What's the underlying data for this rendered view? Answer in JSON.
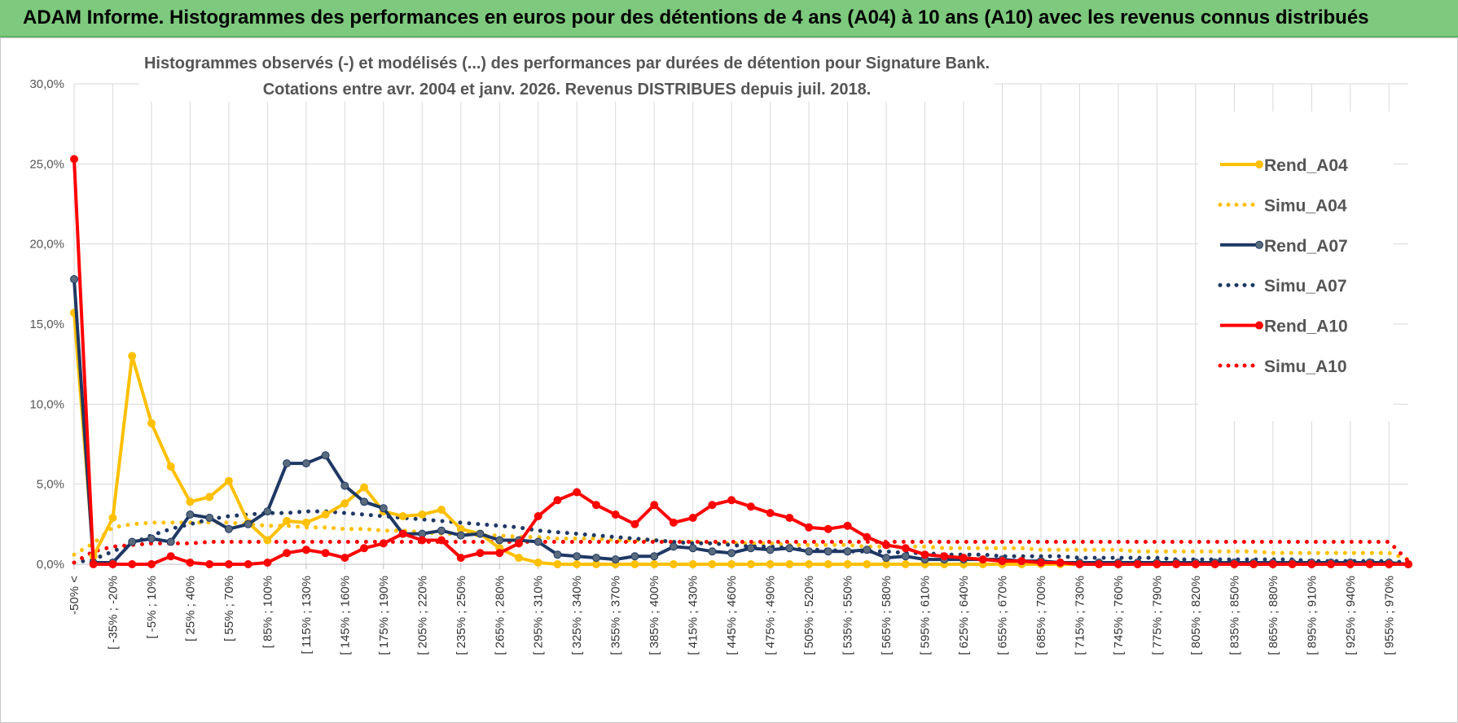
{
  "banner": {
    "title": "ADAM Informe. Histogrammes des performances en euros pour des détentions de 4 ans (A04) à 10 ans (A10) avec les revenus connus distribués"
  },
  "colors": {
    "banner_bg": "#7dc97d",
    "A04": "#ffc000",
    "A07": "#1f3864",
    "A10": "#ff0000",
    "grid": "#d9d9d9"
  },
  "chart_data": {
    "type": "line",
    "title": "Histogrammes observés (-) et modélisés (...) des performances par durées de détention pour Signature Bank.",
    "subtitle": "Cotations entre avr. 2004 et janv. 2026. Revenus DISTRIBUES depuis juil. 2018.",
    "xlabel": "",
    "ylabel": "",
    "ylim": [
      0,
      0.3
    ],
    "y_ticks": [
      "0,0%",
      "5,0%",
      "10,0%",
      "15,0%",
      "20,0%",
      "25,0%",
      "30,0%"
    ],
    "grid": true,
    "legend_position": "right",
    "categories": [
      "-50% <",
      "[ -50% ; -35%",
      "[ -35% ; -20%",
      "[ -20% ; -5%",
      "[ -5% ; 10%",
      "[ 10% ; 25%",
      "[ 25% ; 40%",
      "[ 40% ; 55%",
      "[ 55% ; 70%",
      "[ 70% ; 85%",
      "[ 85% ; 100%",
      "[ 100% ; 115%",
      "[ 115% ; 130%",
      "[ 130% ; 145%",
      "[ 145% ; 160%",
      "[ 160% ; 175%",
      "[ 175% ; 190%",
      "[ 190% ; 205%",
      "[ 205% ; 220%",
      "[ 220% ; 235%",
      "[ 235% ; 250%",
      "[ 250% ; 265%",
      "[ 265% ; 280%",
      "[ 280% ; 295%",
      "[ 295% ; 310%",
      "[ 310% ; 325%",
      "[ 325% ; 340%",
      "[ 340% ; 355%",
      "[ 355% ; 370%",
      "[ 370% ; 385%",
      "[ 385% ; 400%",
      "[ 400% ; 415%",
      "[ 415% ; 430%",
      "[ 430% ; 445%",
      "[ 445% ; 460%",
      "[ 460% ; 475%",
      "[ 475% ; 490%",
      "[ 490% ; 505%",
      "[ 505% ; 520%",
      "[ 520% ; 535%",
      "[ 535% ; 550%",
      "[ 550% ; 565%",
      "[ 565% ; 580%",
      "[ 580% ; 595%",
      "[ 595% ; 610%",
      "[ 610% ; 625%",
      "[ 625% ; 640%",
      "[ 640% ; 655%",
      "[ 655% ; 670%",
      "[ 670% ; 685%",
      "[ 685% ; 700%",
      "[ 700% ; 715%",
      "[ 715% ; 730%",
      "[ 730% ; 745%",
      "[ 745% ; 760%",
      "[ 760% ; 775%",
      "[ 775% ; 790%",
      "[ 790% ; 805%",
      "[ 805% ; 820%",
      "[ 820% ; 835%",
      "[ 835% ; 850%",
      "[ 850% ; 865%",
      "[ 865% ; 880%",
      "[ 880% ; 895%",
      "[ 895% ; 910%",
      "[ 910% ; 925%",
      "[ 925% ; 940%",
      "[ 940% ; 955%",
      "[ 955% ; 970%",
      "[ 970% ; 985%"
    ],
    "shown_tick_labels": [
      "-50% <",
      "[ -35% ; -20%",
      "[ -5% ; 10%",
      "[ 25% ; 40%",
      "[ 55% ; 70%",
      "[ 85% ; 100%",
      "[ 115% ; 130%",
      "[ 145% ; 160%",
      "[ 175% ; 190%",
      "[ 205% ; 220%",
      "[ 235% ; 250%",
      "[ 265% ; 280%",
      "[ 295% ; 310%",
      "[ 325% ; 340%",
      "[ 355% ; 370%",
      "[ 385% ; 400%",
      "[ 415% ; 430%",
      "[ 445% ; 460%",
      "[ 475% ; 490%",
      "[ 505% ; 520%",
      "[ 535% ; 550%",
      "[ 565% ; 580%",
      "[ 595% ; 610%",
      "[ 625% ; 640%",
      "[ 655% ; 670%",
      "[ 685% ; 700%",
      "[ 715% ; 730%",
      "[ 745% ; 760%",
      "[ 775% ; 790%",
      "[ 805% ; 820%",
      "[ 835% ; 850%",
      "[ 865% ; 880%",
      "[ 895% ; 910%",
      "[ 925% ; 940%",
      "[ 955% ; 970%"
    ],
    "series": [
      {
        "name": "Rend_A04",
        "style": "solid",
        "color": "#ffc000",
        "values": [
          0.157,
          0.005,
          0.029,
          0.13,
          0.088,
          0.061,
          0.039,
          0.042,
          0.052,
          0.026,
          0.015,
          0.027,
          0.026,
          0.031,
          0.038,
          0.048,
          0.033,
          0.03,
          0.031,
          0.034,
          0.022,
          0.019,
          0.01,
          0.004,
          0.001,
          0,
          0,
          0,
          0,
          0,
          0,
          0,
          0,
          0,
          0,
          0,
          0,
          0,
          0,
          0,
          0,
          0,
          0,
          0,
          0,
          0,
          0,
          0,
          0,
          0,
          0,
          0,
          0,
          0,
          0,
          0,
          0,
          0,
          0,
          0,
          0,
          0,
          0,
          0,
          0,
          0,
          0,
          0,
          0,
          0
        ]
      },
      {
        "name": "Simu_A04",
        "style": "dotted",
        "color": "#ffc000",
        "values": [
          0.006,
          0.013,
          0.023,
          0.025,
          0.026,
          0.026,
          0.026,
          0.026,
          0.026,
          0.025,
          0.024,
          0.024,
          0.023,
          0.023,
          0.022,
          0.022,
          0.021,
          0.021,
          0.02,
          0.019,
          0.019,
          0.018,
          0.018,
          0.017,
          0.017,
          0.016,
          0.016,
          0.016,
          0.015,
          0.015,
          0.015,
          0.014,
          0.014,
          0.013,
          0.013,
          0.013,
          0.013,
          0.012,
          0.012,
          0.012,
          0.012,
          0.011,
          0.011,
          0.011,
          0.011,
          0.01,
          0.01,
          0.01,
          0.01,
          0.01,
          0.009,
          0.009,
          0.009,
          0.009,
          0.009,
          0.008,
          0.008,
          0.008,
          0.008,
          0.008,
          0.008,
          0.008,
          0.007,
          0.007,
          0.007,
          0.007,
          0.007,
          0.007,
          0.007,
          0.003
        ]
      },
      {
        "name": "Rend_A07",
        "style": "solid",
        "color": "#1f3864",
        "values": [
          0.178,
          0.001,
          0.001,
          0.014,
          0.016,
          0.014,
          0.031,
          0.029,
          0.022,
          0.025,
          0.033,
          0.063,
          0.063,
          0.068,
          0.049,
          0.039,
          0.035,
          0.019,
          0.019,
          0.021,
          0.018,
          0.019,
          0.015,
          0.015,
          0.014,
          0.006,
          0.005,
          0.004,
          0.003,
          0.005,
          0.005,
          0.011,
          0.01,
          0.008,
          0.007,
          0.01,
          0.009,
          0.01,
          0.008,
          0.008,
          0.008,
          0.009,
          0.004,
          0.005,
          0.003,
          0.003,
          0.003,
          0.003,
          0.003,
          0.002,
          0.002,
          0.001,
          0.001,
          0.001,
          0.001,
          0.001,
          0.001,
          0.001,
          0.001,
          0.001,
          0.001,
          0.001,
          0.001,
          0.001,
          0.001,
          0.001,
          0.001,
          0.001,
          0.001,
          0
        ]
      },
      {
        "name": "Simu_A07",
        "style": "dotted",
        "color": "#1f3864",
        "values": [
          0.001,
          0.003,
          0.008,
          0.013,
          0.018,
          0.022,
          0.025,
          0.028,
          0.03,
          0.031,
          0.032,
          0.032,
          0.033,
          0.033,
          0.032,
          0.031,
          0.03,
          0.029,
          0.028,
          0.027,
          0.026,
          0.025,
          0.024,
          0.023,
          0.021,
          0.02,
          0.019,
          0.018,
          0.017,
          0.016,
          0.015,
          0.014,
          0.013,
          0.013,
          0.012,
          0.011,
          0.011,
          0.01,
          0.009,
          0.009,
          0.008,
          0.008,
          0.008,
          0.007,
          0.007,
          0.006,
          0.006,
          0.006,
          0.005,
          0.005,
          0.005,
          0.005,
          0.004,
          0.004,
          0.004,
          0.004,
          0.004,
          0.003,
          0.003,
          0.003,
          0.003,
          0.003,
          0.003,
          0.003,
          0.002,
          0.002,
          0.002,
          0.002,
          0.002,
          0.001
        ]
      },
      {
        "name": "Rend_A10",
        "style": "solid",
        "color": "#ff0000",
        "values": [
          0.253,
          0,
          0,
          0,
          0,
          0.005,
          0.001,
          0,
          0,
          0,
          0.001,
          0.007,
          0.009,
          0.007,
          0.004,
          0.01,
          0.013,
          0.019,
          0.015,
          0.015,
          0.004,
          0.007,
          0.007,
          0.013,
          0.03,
          0.04,
          0.045,
          0.037,
          0.031,
          0.025,
          0.037,
          0.026,
          0.029,
          0.037,
          0.04,
          0.036,
          0.032,
          0.029,
          0.023,
          0.022,
          0.024,
          0.017,
          0.012,
          0.01,
          0.006,
          0.005,
          0.004,
          0.003,
          0.002,
          0.002,
          0.001,
          0.001,
          0,
          0,
          0,
          0,
          0,
          0,
          0,
          0,
          0,
          0,
          0,
          0,
          0,
          0,
          0,
          0,
          0,
          0
        ]
      },
      {
        "name": "Simu_A10",
        "style": "dotted",
        "color": "#ff0000",
        "values": [
          0.001,
          0.008,
          0.011,
          0.012,
          0.013,
          0.013,
          0.013,
          0.014,
          0.014,
          0.014,
          0.014,
          0.014,
          0.014,
          0.014,
          0.014,
          0.014,
          0.014,
          0.014,
          0.014,
          0.014,
          0.014,
          0.014,
          0.014,
          0.014,
          0.014,
          0.014,
          0.014,
          0.014,
          0.014,
          0.014,
          0.014,
          0.014,
          0.014,
          0.014,
          0.014,
          0.014,
          0.014,
          0.014,
          0.014,
          0.014,
          0.014,
          0.014,
          0.014,
          0.014,
          0.014,
          0.014,
          0.014,
          0.014,
          0.014,
          0.014,
          0.014,
          0.014,
          0.014,
          0.014,
          0.014,
          0.014,
          0.014,
          0.014,
          0.014,
          0.014,
          0.014,
          0.014,
          0.014,
          0.014,
          0.014,
          0.014,
          0.014,
          0.014,
          0.014,
          0.002
        ]
      }
    ]
  }
}
